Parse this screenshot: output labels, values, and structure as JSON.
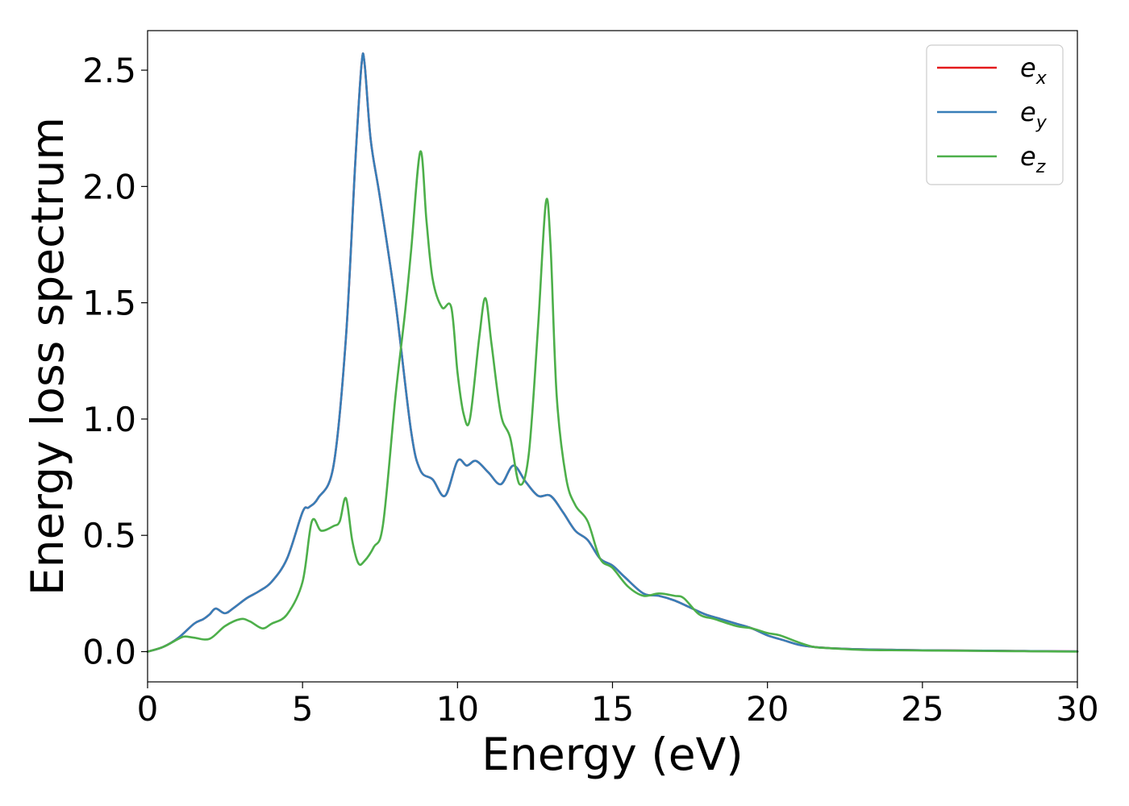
{
  "chart_data": {
    "type": "line",
    "title": "",
    "xlabel": "Energy (eV)",
    "ylabel": "Energy loss spectrum",
    "xlim": [
      0,
      30
    ],
    "ylim": [
      -0.13,
      2.67
    ],
    "xticks": [
      0,
      5,
      10,
      15,
      20,
      25,
      30
    ],
    "xtick_labels": [
      "0",
      "5",
      "10",
      "15",
      "20",
      "25",
      "30"
    ],
    "yticks": [
      0.0,
      0.5,
      1.0,
      1.5,
      2.0,
      2.5
    ],
    "ytick_labels": [
      "0.0",
      "0.5",
      "1.0",
      "1.5",
      "2.0",
      "2.5"
    ],
    "grid": false,
    "legend": {
      "placement": "top-right"
    },
    "series": [
      {
        "name": "e_x",
        "label_main": "e",
        "label_sub": "x",
        "color": "#e41a1c",
        "x": [
          0,
          0.5,
          1.0,
          1.5,
          1.8,
          2.0,
          2.2,
          2.5,
          2.8,
          3.2,
          3.6,
          4.0,
          4.5,
          5.0,
          5.2,
          5.5,
          6.0,
          6.4,
          6.7,
          6.9,
          7.0,
          7.2,
          7.5,
          8.0,
          8.5,
          8.8,
          9.2,
          9.6,
          10.0,
          10.3,
          10.6,
          11.0,
          11.4,
          11.8,
          12.2,
          12.6,
          13.0,
          13.4,
          13.8,
          14.2,
          14.6,
          15.0,
          15.4,
          16.0,
          16.5,
          17.0,
          17.5,
          18.0,
          18.5,
          19.0,
          19.5,
          20.0,
          20.5,
          21.0,
          21.5,
          22.0,
          23.0,
          24.0,
          25.0,
          26.0,
          27.0,
          28.0,
          29.0,
          30.0
        ],
        "y": [
          0.0,
          0.02,
          0.06,
          0.12,
          0.14,
          0.16,
          0.185,
          0.165,
          0.19,
          0.23,
          0.26,
          0.3,
          0.4,
          0.6,
          0.62,
          0.66,
          0.8,
          1.35,
          2.1,
          2.52,
          2.53,
          2.2,
          1.95,
          1.5,
          0.95,
          0.78,
          0.74,
          0.67,
          0.82,
          0.8,
          0.82,
          0.77,
          0.72,
          0.8,
          0.73,
          0.67,
          0.67,
          0.6,
          0.52,
          0.48,
          0.4,
          0.37,
          0.32,
          0.25,
          0.24,
          0.22,
          0.19,
          0.16,
          0.14,
          0.12,
          0.1,
          0.07,
          0.05,
          0.03,
          0.02,
          0.015,
          0.01,
          0.008,
          0.006,
          0.005,
          0.004,
          0.003,
          0.002,
          0.001
        ]
      },
      {
        "name": "e_y",
        "label_main": "e",
        "label_sub": "y",
        "color": "#377eb8",
        "x": [
          0,
          0.5,
          1.0,
          1.5,
          1.8,
          2.0,
          2.2,
          2.5,
          2.8,
          3.2,
          3.6,
          4.0,
          4.5,
          5.0,
          5.2,
          5.5,
          6.0,
          6.4,
          6.7,
          6.9,
          7.0,
          7.2,
          7.5,
          8.0,
          8.5,
          8.8,
          9.2,
          9.6,
          10.0,
          10.3,
          10.6,
          11.0,
          11.4,
          11.8,
          12.2,
          12.6,
          13.0,
          13.4,
          13.8,
          14.2,
          14.6,
          15.0,
          15.4,
          16.0,
          16.5,
          17.0,
          17.5,
          18.0,
          18.5,
          19.0,
          19.5,
          20.0,
          20.5,
          21.0,
          21.5,
          22.0,
          23.0,
          24.0,
          25.0,
          26.0,
          27.0,
          28.0,
          29.0,
          30.0
        ],
        "y": [
          0.0,
          0.02,
          0.06,
          0.12,
          0.14,
          0.16,
          0.185,
          0.165,
          0.19,
          0.23,
          0.26,
          0.3,
          0.4,
          0.6,
          0.62,
          0.66,
          0.8,
          1.35,
          2.1,
          2.52,
          2.53,
          2.2,
          1.95,
          1.5,
          0.95,
          0.78,
          0.74,
          0.67,
          0.82,
          0.8,
          0.82,
          0.77,
          0.72,
          0.8,
          0.73,
          0.67,
          0.67,
          0.6,
          0.52,
          0.48,
          0.4,
          0.37,
          0.32,
          0.25,
          0.24,
          0.22,
          0.19,
          0.16,
          0.14,
          0.12,
          0.1,
          0.07,
          0.05,
          0.03,
          0.02,
          0.015,
          0.01,
          0.008,
          0.006,
          0.005,
          0.004,
          0.003,
          0.002,
          0.001
        ]
      },
      {
        "name": "e_z",
        "label_main": "e",
        "label_sub": "z",
        "color": "#4daf4a",
        "x": [
          0,
          0.5,
          1.0,
          1.2,
          1.5,
          2.0,
          2.5,
          3.0,
          3.3,
          3.7,
          4.0,
          4.5,
          5.0,
          5.3,
          5.6,
          6.0,
          6.2,
          6.4,
          6.6,
          6.8,
          7.0,
          7.3,
          7.6,
          8.0,
          8.3,
          8.5,
          8.8,
          9.0,
          9.2,
          9.5,
          9.8,
          10.0,
          10.2,
          10.4,
          10.7,
          10.9,
          11.1,
          11.4,
          11.7,
          12.0,
          12.3,
          12.6,
          12.85,
          13.0,
          13.2,
          13.5,
          13.8,
          14.2,
          14.6,
          15.0,
          15.5,
          16.0,
          16.5,
          17.0,
          17.3,
          17.8,
          18.3,
          19.0,
          19.5,
          20.0,
          20.4,
          21.0,
          21.5,
          22.0,
          23.0,
          24.0,
          25.0,
          26.0,
          27.0,
          28.0,
          29.0,
          30.0
        ],
        "y": [
          0.0,
          0.02,
          0.055,
          0.065,
          0.06,
          0.055,
          0.11,
          0.14,
          0.13,
          0.1,
          0.12,
          0.16,
          0.3,
          0.56,
          0.52,
          0.54,
          0.56,
          0.66,
          0.48,
          0.38,
          0.39,
          0.45,
          0.55,
          1.1,
          1.45,
          1.72,
          2.15,
          1.85,
          1.6,
          1.48,
          1.48,
          1.2,
          1.02,
          1.0,
          1.35,
          1.52,
          1.32,
          1.02,
          0.92,
          0.72,
          0.85,
          1.4,
          1.93,
          1.75,
          1.1,
          0.75,
          0.63,
          0.56,
          0.4,
          0.36,
          0.28,
          0.24,
          0.25,
          0.24,
          0.23,
          0.16,
          0.14,
          0.11,
          0.1,
          0.08,
          0.07,
          0.04,
          0.02,
          0.015,
          0.008,
          0.006,
          0.005,
          0.004,
          0.003,
          0.002,
          0.001,
          0.0
        ]
      }
    ]
  }
}
